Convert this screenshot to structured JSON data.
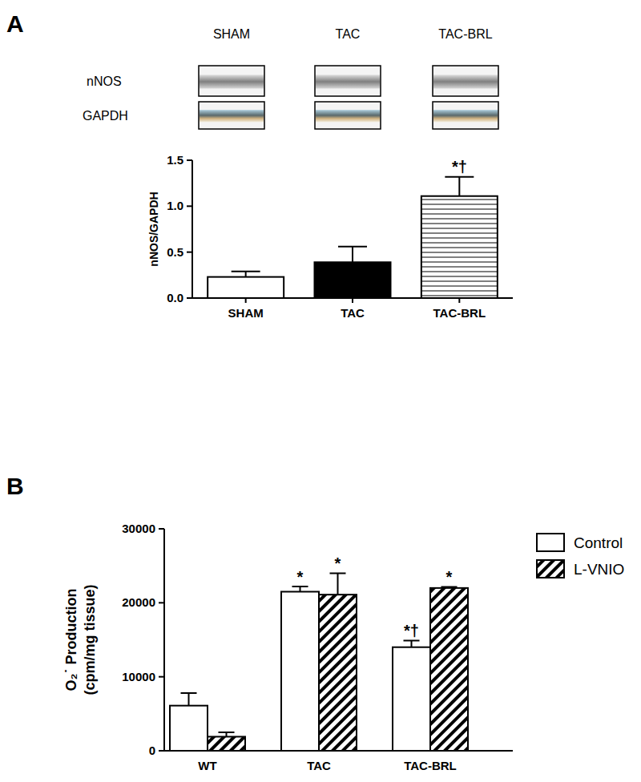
{
  "chart_data": [
    {
      "type": "bar",
      "title": "A",
      "blot": {
        "lanes": [
          "SHAM",
          "TAC",
          "TAC-BRL"
        ],
        "rows": [
          "nNOS",
          "GAPDH"
        ]
      },
      "categories": [
        "SHAM",
        "TAC",
        "TAC-BRL"
      ],
      "values": [
        0.23,
        0.39,
        1.11
      ],
      "errors": [
        0.06,
        0.17,
        0.21
      ],
      "colors": [
        "#ffffff",
        "#000000",
        "#ffffff"
      ],
      "annotations": [
        null,
        null,
        "*†"
      ],
      "y_label": "nNOS/GAPDH",
      "ylim": [
        0,
        1.5
      ],
      "yticks": [
        {
          "value": 0,
          "label": "0.0"
        },
        0.5,
        {
          "value": 1,
          "label": "1.0"
        },
        1.5
      ],
      "grid": false
    },
    {
      "type": "bar",
      "title": "B",
      "categories": [
        "WT",
        "TAC",
        "TAC-BRL"
      ],
      "series": [
        {
          "name": "Control",
          "color": "#ffffff",
          "values": [
            6100,
            21500,
            14000
          ],
          "errors": [
            1700,
            700,
            900
          ],
          "annotations": [
            null,
            "*",
            "*†"
          ]
        },
        {
          "name": "L-VNIO",
          "color": "#ffffff",
          "values": [
            1900,
            21100,
            22000
          ],
          "errors": [
            600,
            2900,
            150
          ],
          "annotations": [
            null,
            "*",
            "*"
          ]
        }
      ],
      "y_label": [
        "O₂˙ Production",
        "(cpm/mg tissue)"
      ],
      "ylim": [
        0,
        30000
      ],
      "yticks": [
        0,
        10000,
        20000,
        30000
      ],
      "legend": "right",
      "grid": false
    }
  ]
}
